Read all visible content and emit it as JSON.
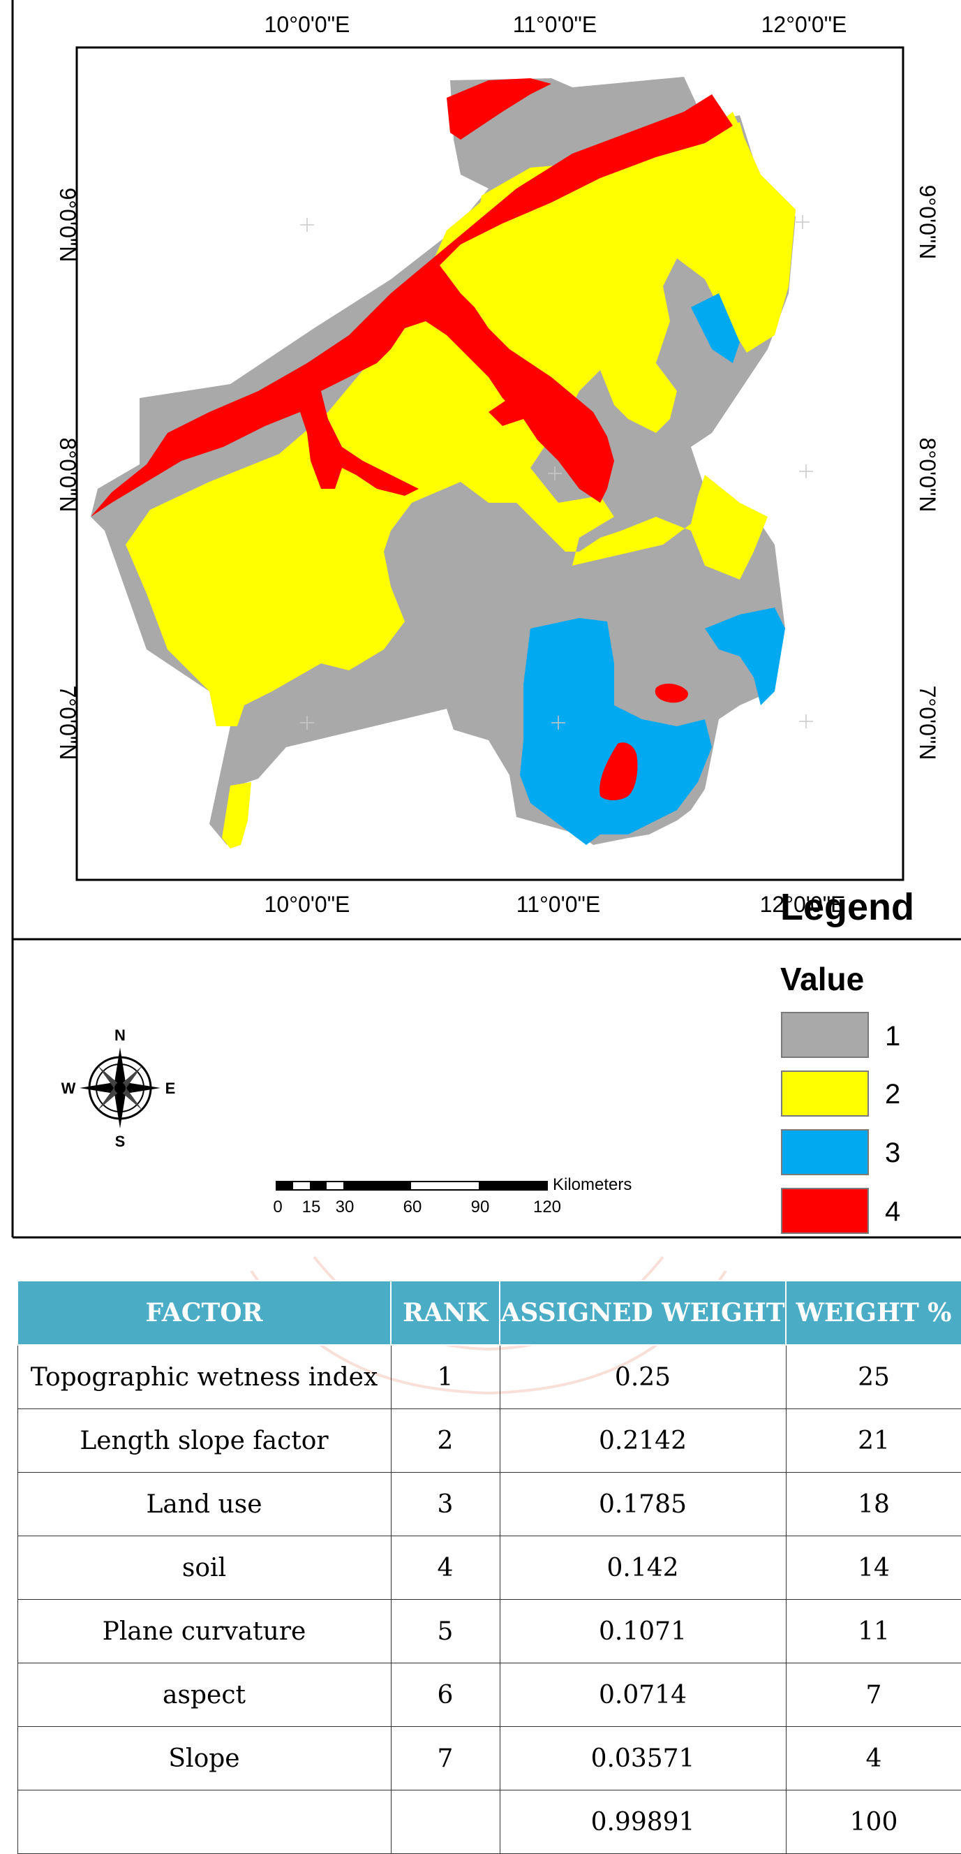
{
  "map": {
    "top_ticks": [
      "10°0'0\"E",
      "11°0'0\"E",
      "12°0'0\"E"
    ],
    "bottom_ticks": [
      "10°0'0\"E",
      "11°0'0\"E",
      "12°0'0\"E"
    ],
    "left_ticks": [
      "9°0'0\"N",
      "8°0'0\"N",
      "7°0'0\"N"
    ],
    "right_ticks": [
      "9°0'0\"N",
      "8°0'0\"N",
      "7°0'0\"N"
    ],
    "legend": {
      "title": "Legend",
      "subtitle": "Value",
      "items": [
        {
          "label": "1",
          "color": "#a9a9a9"
        },
        {
          "label": "2",
          "color": "#ffff00"
        },
        {
          "label": "3",
          "color": "#00a9f0"
        },
        {
          "label": "4",
          "color": "#ff0000"
        }
      ]
    },
    "compass": {
      "n": "N",
      "s": "S",
      "e": "E",
      "w": "W"
    },
    "scale_bar": {
      "unit": "Kilometers",
      "ticks": [
        "0",
        "15",
        "30",
        "60",
        "90",
        "120"
      ]
    },
    "class_colors": {
      "grey": "#a9a9a9",
      "yellow": "#ffff00",
      "blue": "#00a9f0",
      "red": "#ff0000"
    }
  },
  "table": {
    "header_color": "#4bacc6",
    "headers": [
      "FACTOR",
      "RANK",
      "ASSIGNED WEIGHT",
      "WEIGHT %"
    ],
    "rows": [
      [
        "Topographic wetness index",
        "1",
        "0.25",
        "25"
      ],
      [
        "Length slope factor",
        "2",
        "0.2142",
        "21"
      ],
      [
        "Land use",
        "3",
        "0.1785",
        "18"
      ],
      [
        "soil",
        "4",
        "0.142",
        "14"
      ],
      [
        "Plane curvature",
        "5",
        "0.1071",
        "11"
      ],
      [
        "aspect",
        "6",
        "0.0714",
        "7"
      ],
      [
        "Slope",
        "7",
        "0.03571",
        "4"
      ],
      [
        "",
        "",
        "0.99891",
        "100"
      ]
    ]
  }
}
